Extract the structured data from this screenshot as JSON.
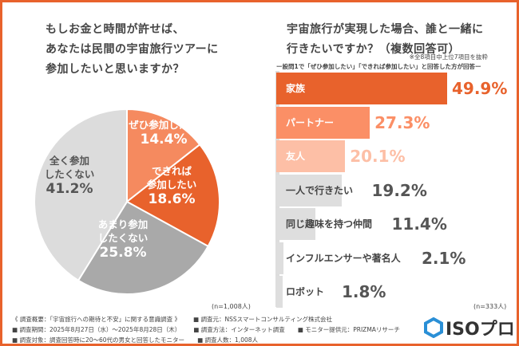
{
  "left": {
    "question": [
      "もしお金と時間が許せば、",
      "あなたは民間の宇宙旅行ツアーに",
      "参加したいと思いますか？"
    ],
    "n": "(n=1,008人)"
  },
  "right": {
    "question": [
      "宇宙旅行が実現した場合、誰と一緒に",
      "行きたいですか？（複数回答可）"
    ],
    "note": "※全8項目中上位7項目を抜粋",
    "subtitle": "ー設問1で「ぜひ参加したい」「できれば参加したい」と回答した方が回答ー",
    "n": "(n=333人)"
  },
  "chart_data": [
    {
      "type": "pie",
      "categories": [
        "ぜひ参加したい",
        "できれば参加したい",
        "あまり参加したくない",
        "全く参加したくない"
      ],
      "values": [
        14.4,
        18.6,
        25.8,
        41.2
      ],
      "labels": [
        "14.4%",
        "18.6%",
        "25.8%",
        "41.2%"
      ],
      "label_lines": [
        [
          "ぜひ参加したい"
        ],
        [
          "できれば",
          "参加したい"
        ],
        [
          "あまり参加",
          "したくない"
        ],
        [
          "全く参加",
          "したくない"
        ]
      ],
      "colors": [
        "#f58a5f",
        "#e8622c",
        "#a9a9a9",
        "#dcdcdc"
      ],
      "start": "top",
      "direction": "clockwise"
    },
    {
      "type": "bar",
      "orientation": "horizontal",
      "categories": [
        "家族",
        "パートナー",
        "友人",
        "一人で行きたい",
        "同じ趣味を持つ仲間",
        "インフルエンサーや著名人",
        "ロボット"
      ],
      "values": [
        49.9,
        27.3,
        20.1,
        19.2,
        11.4,
        2.1,
        1.8
      ],
      "labels": [
        "49.9%",
        "27.3%",
        "20.1%",
        "19.2%",
        "11.4%",
        "2.1%",
        "1.8%"
      ],
      "colors": [
        "#e8622c",
        "#fb8f66",
        "#fdbfa6",
        "#dedede",
        "#dedede",
        "#dedede",
        "#dedede"
      ],
      "value_colors": [
        "#e8622c",
        "#fb8f66",
        "#fdbfa6",
        "#555555",
        "#555555",
        "#555555",
        "#555555"
      ],
      "label_colors": [
        "#ffffff",
        "#ffffff",
        "#ffffff",
        "#444444",
        "#444444",
        "#444444",
        "#444444"
      ]
    }
  ],
  "footer": {
    "lines": [
      [
        "《 調査概要：「宇宙旅行への期待と不安」に関する意識調査 》",
        "■ 調査元：NSSスマートコンサルティング株式会社"
      ],
      [
        "■ 調査期間：2025年8月27日（水）～2025年8月28日（木）",
        "■ 調査方法：インターネット調査",
        "■ モニター提供元：PRIZMAリサーチ"
      ],
      [
        "■ 調査対象：調査回答時に20～60代の男女と回答したモニター",
        "■ 調査人数：1,008人"
      ]
    ],
    "logo": "ISOプロ"
  }
}
